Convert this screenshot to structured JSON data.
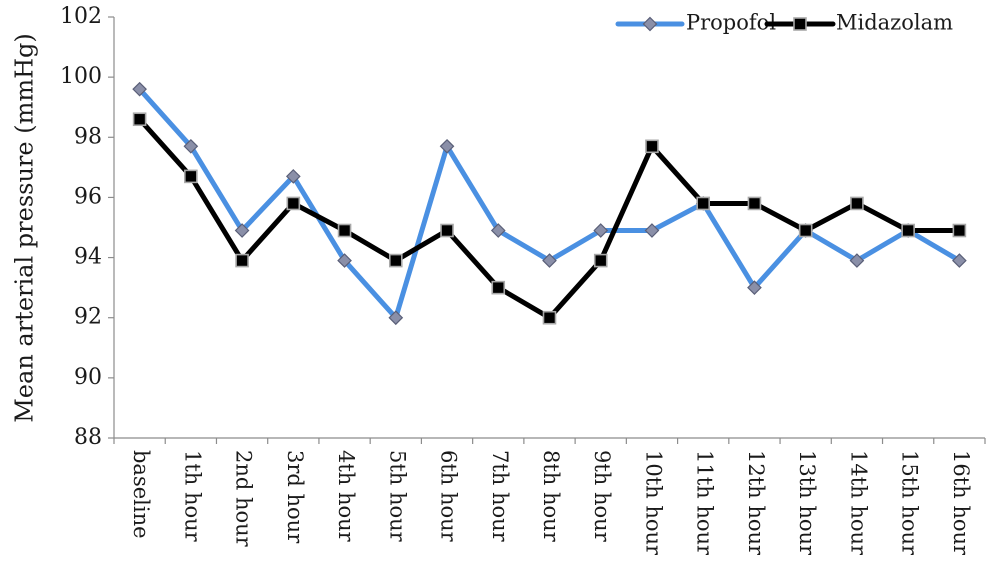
{
  "chart_data": {
    "type": "line",
    "title": "",
    "xlabel": "",
    "ylabel": "Mean arterial pressure (mmHg)",
    "ylim": [
      88,
      102
    ],
    "yticks": [
      "88",
      "90",
      "92",
      "94",
      "96",
      "98",
      "100",
      "102"
    ],
    "grid": false,
    "legend_position": "top-right",
    "categories": [
      "baseline",
      "1th hour",
      "2nd hour",
      "3rd hour",
      "4th hour",
      "5th hour",
      "6th hour",
      "7th hour",
      "8th hour",
      "9th hour",
      "10th hour",
      "11th hour",
      "12th hour",
      "13th hour",
      "14th hour",
      "15th hour",
      "16th hour"
    ],
    "series": [
      {
        "name": "Propofol",
        "color": "#4a90e2",
        "marker": "diamond",
        "values": [
          99.6,
          97.7,
          94.9,
          96.7,
          93.9,
          92.0,
          97.7,
          94.9,
          93.9,
          94.9,
          94.9,
          95.8,
          93.0,
          94.9,
          93.9,
          94.9,
          93.9
        ]
      },
      {
        "name": "Midazolam",
        "color": "#000000",
        "marker": "square",
        "values": [
          98.6,
          96.7,
          93.9,
          95.8,
          94.9,
          93.9,
          94.9,
          93.0,
          92.0,
          93.9,
          97.7,
          95.8,
          95.8,
          94.9,
          95.8,
          94.9,
          94.9
        ]
      }
    ]
  }
}
